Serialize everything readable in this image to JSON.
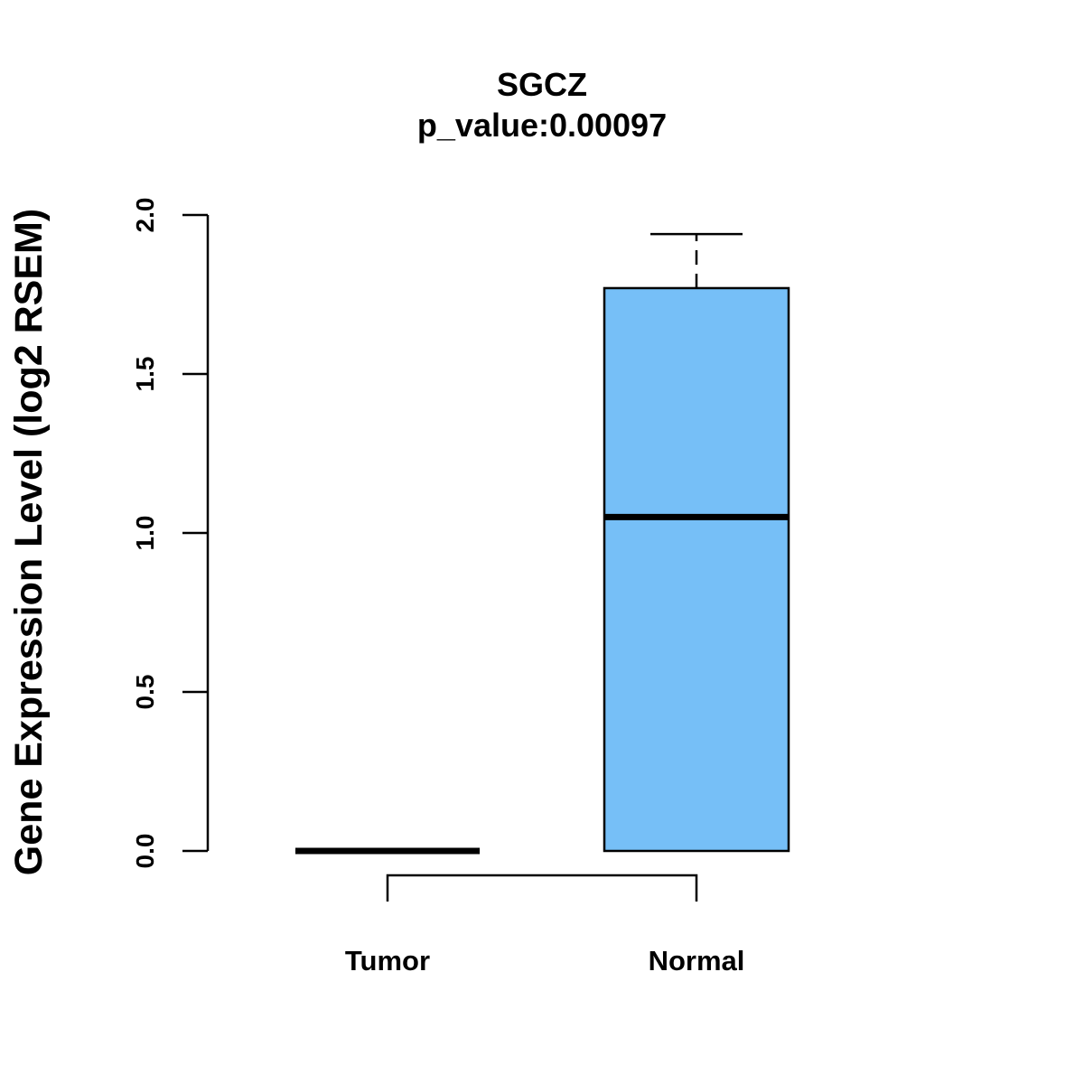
{
  "chart_data": {
    "type": "boxplot",
    "title": "SGCZ",
    "subtitle": "p_value:0.00097",
    "ylabel": "Gene Expression Level (log2 RSEM)",
    "xlabel": "",
    "ylim": [
      0,
      2
    ],
    "yticks": [
      "0.0",
      "0.5",
      "1.0",
      "1.5",
      "2.0"
    ],
    "categories": [
      "Tumor",
      "Normal"
    ],
    "boxes": [
      {
        "name": "Tumor",
        "min": 0,
        "q1": 0,
        "median": 0,
        "q3": 0,
        "max": 0,
        "fill": "#ffffff"
      },
      {
        "name": "Normal",
        "min": 0,
        "q1": 0,
        "median": 1.05,
        "q3": 1.77,
        "max": 1.94,
        "fill": "#76bff7"
      }
    ],
    "comparison_bracket": [
      "Tumor",
      "Normal"
    ]
  }
}
